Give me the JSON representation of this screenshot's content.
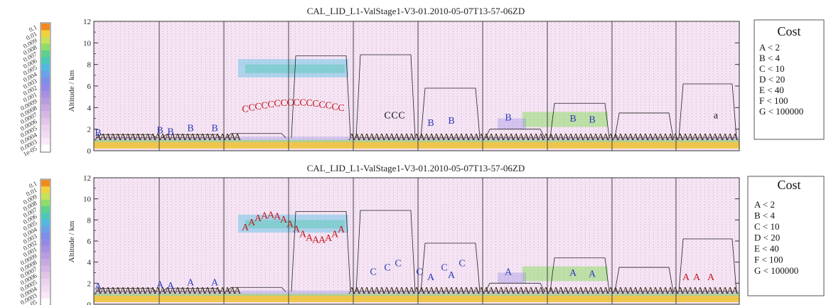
{
  "chart_data": [
    {
      "type": "heatmap",
      "title": "CAL_LID_L1-ValStage1-V3-01.2010-05-07T13-57-06ZD",
      "ylabel": "Altitude / km",
      "ylim": [
        0,
        12
      ],
      "yticks": [
        "0",
        "2",
        "4",
        "6",
        "8",
        "10",
        "12"
      ],
      "colorbar": {
        "labels": [
          "0.1",
          "0.01",
          "0.009",
          "0.008",
          "0.007",
          "0.006",
          "0.005",
          "0.004",
          "0.003",
          "0.002",
          "0.001",
          "0.0009",
          "0.0008",
          "0.0007",
          "0.0006",
          "0.0005",
          "0.0004",
          "0.0003",
          "1e-05"
        ],
        "colors": [
          "#f08a1e",
          "#f2d23c",
          "#c8e05a",
          "#8fdc6a",
          "#5fd08c",
          "#4cc8b8",
          "#52b8e0",
          "#6aa2e8",
          "#7d8ee8",
          "#9488e6",
          "#a690e2",
          "#b89ce0",
          "#c8a8e2",
          "#d6b6e6",
          "#e2c4ea",
          "#ecd2ee",
          "#f2dcf2",
          "#f8e8f8",
          "#ffffff"
        ]
      },
      "segments": 10,
      "cloud_top_km": [
        1.5,
        1.5,
        1.6,
        8.8,
        8.9,
        5.8,
        2.0,
        4.4,
        3.5,
        6.2
      ],
      "legend": {
        "title": "Cost",
        "items": [
          "A < 2",
          "B < 4",
          "C < 10",
          "D < 20",
          "E < 40",
          "F < 100",
          "G < 100000"
        ]
      }
    },
    {
      "type": "heatmap",
      "title": "CAL_LID_L1-ValStage1-V3-01.2010-05-07T13-57-06ZD",
      "ylabel": "Altitude / km",
      "ylim": [
        0,
        12
      ],
      "yticks": [
        "0",
        "2",
        "4",
        "6",
        "8",
        "10",
        "12"
      ],
      "colorbar": {
        "labels": [
          "0.1",
          "0.01",
          "0.009",
          "0.008",
          "0.007",
          "0.006",
          "0.005",
          "0.004",
          "0.003",
          "0.002",
          "0.001",
          "0.0009",
          "0.0008",
          "0.0007",
          "0.0006",
          "0.0005",
          "0.0004",
          "0.0003",
          "1e-05"
        ],
        "colors": [
          "#f08a1e",
          "#f2d23c",
          "#c8e05a",
          "#8fdc6a",
          "#5fd08c",
          "#4cc8b8",
          "#52b8e0",
          "#6aa2e8",
          "#7d8ee8",
          "#9488e6",
          "#a690e2",
          "#b89ce0",
          "#c8a8e2",
          "#d6b6e6",
          "#e2c4ea",
          "#ecd2ee",
          "#f2dcf2",
          "#f8e8f8",
          "#ffffff"
        ]
      },
      "segments": 10,
      "cloud_top_km": [
        1.5,
        1.5,
        1.6,
        8.8,
        8.9,
        5.8,
        2.0,
        4.4,
        3.5,
        6.2
      ],
      "legend": {
        "title": "Cost",
        "items": [
          "A < 2",
          "B < 4",
          "C < 10",
          "D < 20",
          "E < 40",
          "F < 100",
          "G < 100000"
        ]
      }
    }
  ]
}
